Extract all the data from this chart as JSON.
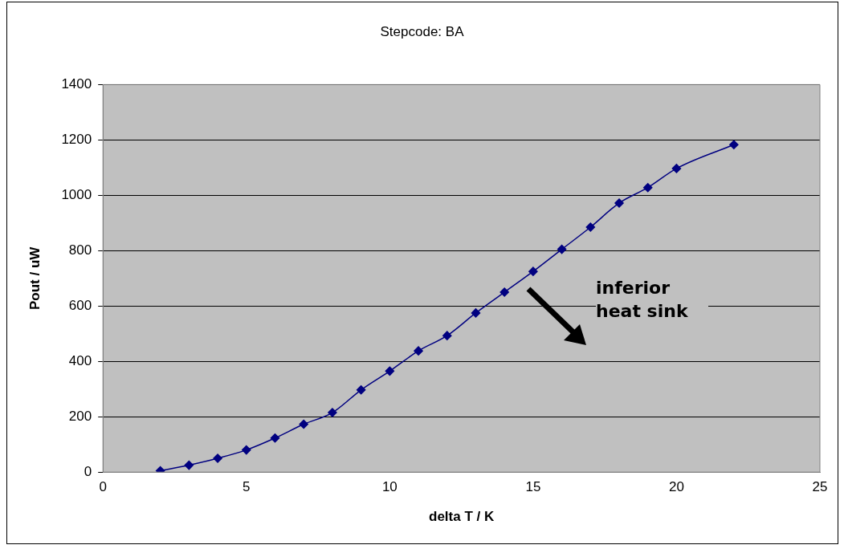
{
  "chart_data": {
    "type": "line",
    "title": "Stepcode: BA",
    "xlabel": "delta T / K",
    "ylabel": "Pout / uW",
    "x": [
      2,
      3,
      4,
      5,
      6,
      7,
      8,
      9,
      10,
      11,
      12,
      13,
      14,
      15,
      16,
      17,
      18,
      19,
      20,
      22
    ],
    "series": [
      {
        "color": "#000080",
        "values": [
          5,
          25,
          50,
          80,
          123,
          173,
          215,
          297,
          365,
          438,
          493,
          575,
          650,
          725,
          805,
          885,
          972,
          1028,
          1097,
          1183
        ]
      }
    ],
    "xlim": [
      0,
      25
    ],
    "xticks": [
      0,
      5,
      10,
      15,
      20,
      25
    ],
    "ylim": [
      0,
      1400
    ],
    "yticks": [
      0,
      200,
      400,
      600,
      800,
      1000,
      1200,
      1400
    ],
    "grid": "y",
    "legend": false,
    "marker": "diamond",
    "line_style": "solid",
    "annotations": [
      "inferior heat sink"
    ]
  }
}
